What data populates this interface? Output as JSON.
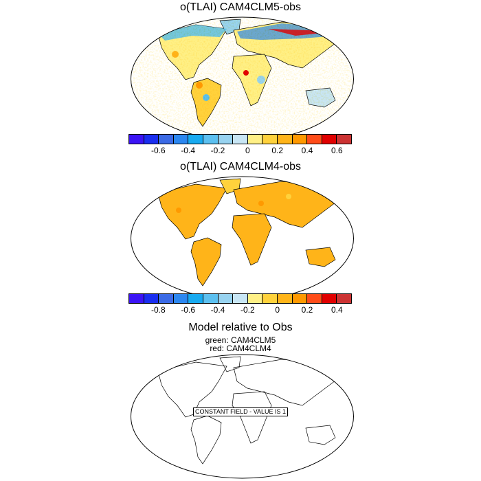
{
  "panels": [
    {
      "title": "o(TLAI) CAM4CLM5-obs",
      "colorbar": {
        "colors": [
          "#3b14f5",
          "#1a2ef0",
          "#3b6ae5",
          "#2c87f0",
          "#18aaf0",
          "#5cc0f0",
          "#98d3f0",
          "#c8e6f5",
          "#fff086",
          "#ffd23c",
          "#ffb419",
          "#ff9900",
          "#ff4c19",
          "#e00000",
          "#cc3333"
        ],
        "labels": [
          "-0.6",
          "-0.4",
          "-0.2",
          "0",
          "0.2",
          "0.4",
          "0.6"
        ]
      }
    },
    {
      "title": "o(TLAI) CAM4CLM4-obs",
      "colorbar": {
        "colors": [
          "#3b14f5",
          "#1a2ef0",
          "#3b6ae5",
          "#2c87f0",
          "#18aaf0",
          "#5cc0f0",
          "#98d3f0",
          "#c8e6f5",
          "#fff086",
          "#ffd23c",
          "#ffb419",
          "#ff9900",
          "#ff4c19",
          "#e00000",
          "#cc3333"
        ],
        "labels": [
          "-0.8",
          "-0.6",
          "-0.4",
          "-0.2",
          "0",
          "0.2",
          "0.4"
        ]
      }
    },
    {
      "title": "Model relative to Obs",
      "legend_lines": [
        "green: CAM4CLM5",
        "red: CAM4CLM4"
      ],
      "annotation": "CONSTANT FIELD - VALUE IS 1"
    }
  ]
}
